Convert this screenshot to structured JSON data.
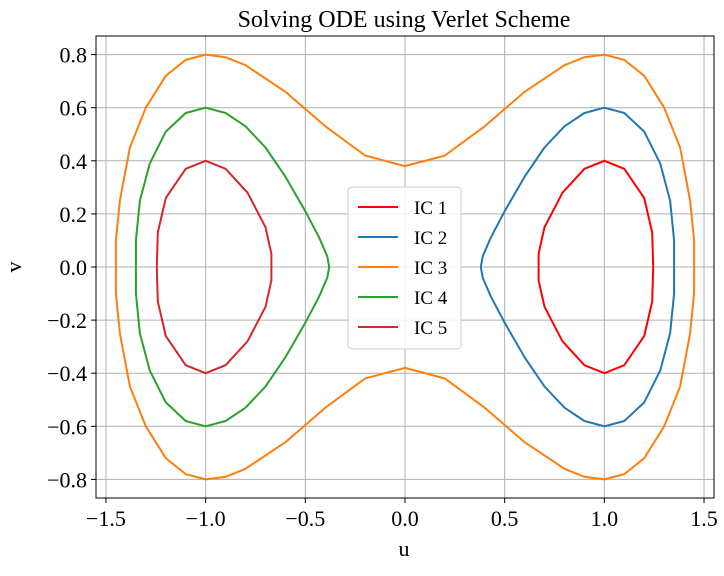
{
  "chart_data": {
    "type": "line",
    "title": "Solving ODE using Verlet Scheme",
    "xlabel": "u",
    "ylabel": "v",
    "xlim": [
      -1.55,
      1.55
    ],
    "ylim": [
      -0.87,
      0.87
    ],
    "xticks": [
      -1.5,
      -1.0,
      -0.5,
      0.0,
      0.5,
      1.0,
      1.5
    ],
    "xtick_labels": [
      "−1.5",
      "−1.0",
      "−0.5",
      "0.0",
      "0.5",
      "1.0",
      "1.5"
    ],
    "yticks": [
      -0.8,
      -0.6,
      -0.4,
      -0.2,
      0.0,
      0.2,
      0.4,
      0.6,
      0.8
    ],
    "ytick_labels": [
      "−0.8",
      "−0.6",
      "−0.4",
      "−0.2",
      "0.0",
      "0.2",
      "0.4",
      "0.6",
      "0.8"
    ],
    "grid": true,
    "legend_position": "center",
    "series": [
      {
        "name": "IC 1",
        "color": "#ff0000",
        "x": [
          1.0,
          1.1,
          1.2,
          1.24,
          1.245,
          1.24,
          1.2,
          1.1,
          1.0,
          0.9,
          0.79,
          0.7,
          0.67,
          0.67,
          0.7,
          0.79,
          0.9,
          1.0
        ],
        "y": [
          0.4,
          0.37,
          0.26,
          0.13,
          0.0,
          -0.13,
          -0.26,
          -0.37,
          -0.4,
          -0.37,
          -0.28,
          -0.15,
          -0.05,
          0.05,
          0.15,
          0.28,
          0.37,
          0.4
        ]
      },
      {
        "name": "IC 2",
        "color": "#1f77b4",
        "x": [
          1.0,
          1.1,
          1.2,
          1.28,
          1.33,
          1.35,
          1.35,
          1.33,
          1.28,
          1.2,
          1.1,
          1.0,
          0.9,
          0.8,
          0.7,
          0.6,
          0.5,
          0.43,
          0.39,
          0.38,
          0.39,
          0.43,
          0.5,
          0.6,
          0.7,
          0.8,
          0.9,
          1.0
        ],
        "y": [
          0.6,
          0.58,
          0.51,
          0.39,
          0.25,
          0.1,
          -0.1,
          -0.25,
          -0.39,
          -0.51,
          -0.58,
          -0.6,
          -0.58,
          -0.53,
          -0.45,
          -0.34,
          -0.21,
          -0.11,
          -0.04,
          0.0,
          0.04,
          0.11,
          0.21,
          0.34,
          0.45,
          0.53,
          0.58,
          0.6
        ]
      },
      {
        "name": "IC 3",
        "color": "#ff7f0e",
        "x": [
          0.0,
          0.2,
          0.4,
          0.6,
          0.8,
          0.9,
          1.0,
          1.1,
          1.2,
          1.3,
          1.38,
          1.43,
          1.45,
          1.45,
          1.43,
          1.38,
          1.3,
          1.2,
          1.1,
          1.0,
          0.9,
          0.8,
          0.6,
          0.4,
          0.2,
          0.0,
          -0.2,
          -0.4,
          -0.6,
          -0.8,
          -0.9,
          -1.0,
          -1.1,
          -1.2,
          -1.3,
          -1.38,
          -1.43,
          -1.45,
          -1.45,
          -1.43,
          -1.38,
          -1.3,
          -1.2,
          -1.1,
          -1.0,
          -0.9,
          -0.8,
          -0.6,
          -0.4,
          -0.2,
          0.0
        ],
        "y": [
          0.38,
          0.42,
          0.53,
          0.66,
          0.76,
          0.79,
          0.8,
          0.78,
          0.72,
          0.6,
          0.45,
          0.25,
          0.1,
          -0.1,
          -0.25,
          -0.45,
          -0.6,
          -0.72,
          -0.78,
          -0.8,
          -0.79,
          -0.76,
          -0.66,
          -0.53,
          -0.42,
          -0.38,
          -0.42,
          -0.53,
          -0.66,
          -0.76,
          -0.79,
          -0.8,
          -0.78,
          -0.72,
          -0.6,
          -0.45,
          -0.25,
          -0.1,
          0.1,
          0.25,
          0.45,
          0.6,
          0.72,
          0.78,
          0.8,
          0.79,
          0.76,
          0.66,
          0.53,
          0.42,
          0.38
        ]
      },
      {
        "name": "IC 4",
        "color": "#2ca02c",
        "x": [
          -1.0,
          -0.9,
          -0.8,
          -0.7,
          -0.6,
          -0.5,
          -0.43,
          -0.39,
          -0.38,
          -0.39,
          -0.43,
          -0.5,
          -0.6,
          -0.7,
          -0.8,
          -0.9,
          -1.0,
          -1.1,
          -1.2,
          -1.28,
          -1.33,
          -1.35,
          -1.35,
          -1.33,
          -1.28,
          -1.2,
          -1.1,
          -1.0
        ],
        "y": [
          0.6,
          0.58,
          0.53,
          0.45,
          0.34,
          0.21,
          0.11,
          0.04,
          0.0,
          -0.04,
          -0.11,
          -0.21,
          -0.34,
          -0.45,
          -0.53,
          -0.58,
          -0.6,
          -0.58,
          -0.51,
          -0.39,
          -0.25,
          -0.1,
          0.1,
          0.25,
          0.39,
          0.51,
          0.58,
          0.6
        ]
      },
      {
        "name": "IC 5",
        "color": "#d62728",
        "x": [
          -1.0,
          -0.9,
          -0.79,
          -0.7,
          -0.67,
          -0.67,
          -0.7,
          -0.79,
          -0.9,
          -1.0,
          -1.1,
          -1.2,
          -1.24,
          -1.245,
          -1.24,
          -1.2,
          -1.1,
          -1.0
        ],
        "y": [
          0.4,
          0.37,
          0.28,
          0.15,
          0.05,
          -0.05,
          -0.15,
          -0.28,
          -0.37,
          -0.4,
          -0.37,
          -0.26,
          -0.13,
          0.0,
          0.13,
          0.26,
          0.37,
          0.4
        ]
      }
    ]
  }
}
